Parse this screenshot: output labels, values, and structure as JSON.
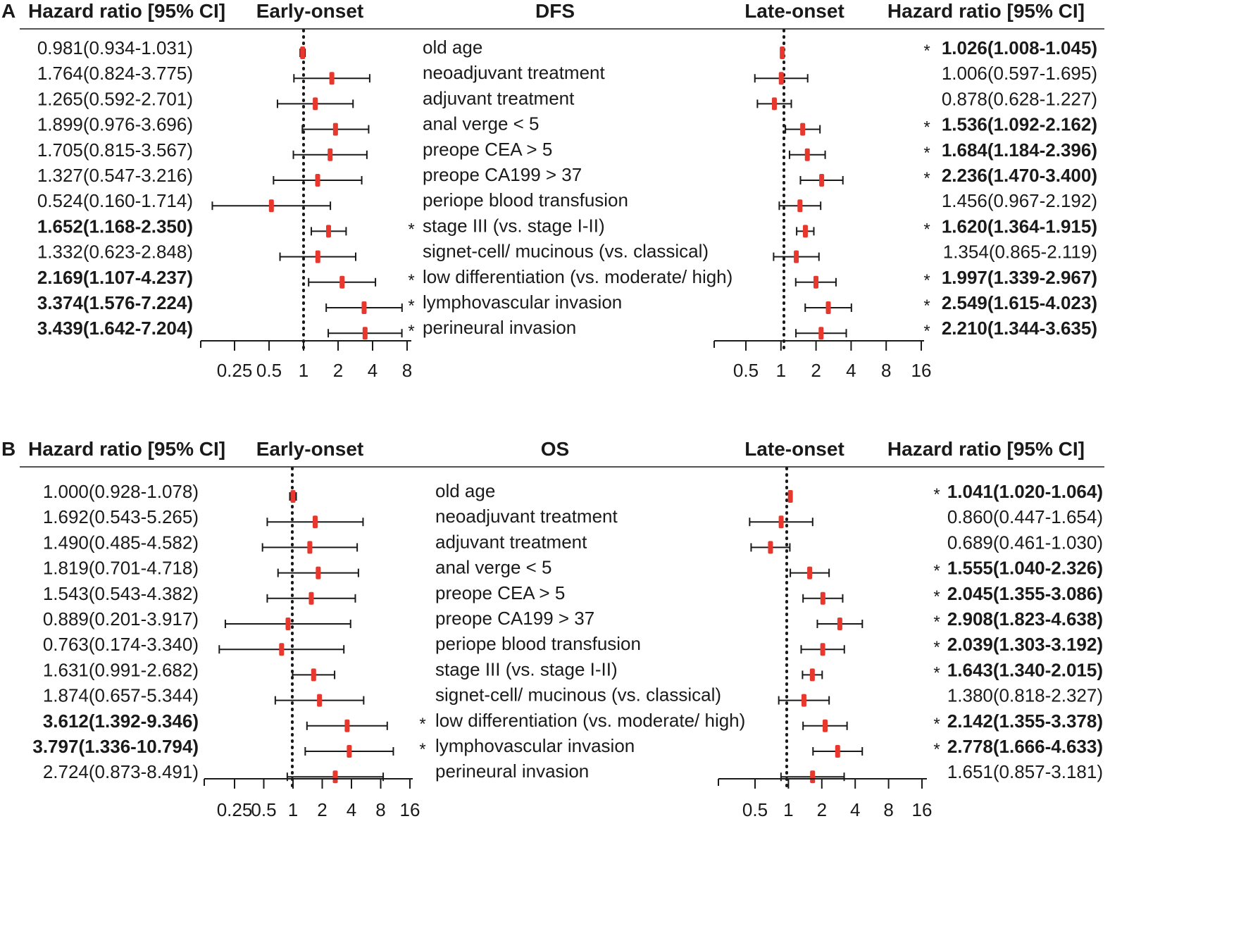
{
  "chart_data": [
    {
      "panel": "A",
      "type": "forest",
      "title": "DFS",
      "header_hr": "Hazard ratio [95% CI]",
      "left_group": "Early-onset",
      "right_group": "Late-onset",
      "scale": "log2",
      "reference_line": 1,
      "left_ticks": [
        "0.25",
        "0.5",
        "1",
        "2",
        "4",
        "8"
      ],
      "left_xlim": [
        0.125,
        8
      ],
      "right_ticks": [
        "0.5",
        "1",
        "2",
        "4",
        "8",
        "16"
      ],
      "right_xlim": [
        0.25,
        16
      ],
      "rows": [
        {
          "variable": "old age",
          "left": {
            "label": "0.981(0.934-1.031)",
            "hr": 0.981,
            "lo": 0.934,
            "hi": 1.031,
            "sig": false
          },
          "right": {
            "label": "1.026(1.008-1.045)",
            "hr": 1.026,
            "lo": 1.008,
            "hi": 1.045,
            "sig": true
          }
        },
        {
          "variable": "neoadjuvant treatment",
          "left": {
            "label": "1.764(0.824-3.775)",
            "hr": 1.764,
            "lo": 0.824,
            "hi": 3.775,
            "sig": false
          },
          "right": {
            "label": "1.006(0.597-1.695)",
            "hr": 1.006,
            "lo": 0.597,
            "hi": 1.695,
            "sig": false
          }
        },
        {
          "variable": "adjuvant treatment",
          "left": {
            "label": "1.265(0.592-2.701)",
            "hr": 1.265,
            "lo": 0.592,
            "hi": 2.701,
            "sig": false
          },
          "right": {
            "label": "0.878(0.628-1.227)",
            "hr": 0.878,
            "lo": 0.628,
            "hi": 1.227,
            "sig": false
          }
        },
        {
          "variable": "anal verge < 5",
          "left": {
            "label": "1.899(0.976-3.696)",
            "hr": 1.899,
            "lo": 0.976,
            "hi": 3.696,
            "sig": false
          },
          "right": {
            "label": "1.536(1.092-2.162)",
            "hr": 1.536,
            "lo": 1.092,
            "hi": 2.162,
            "sig": true
          }
        },
        {
          "variable": "preope CEA > 5",
          "left": {
            "label": "1.705(0.815-3.567)",
            "hr": 1.705,
            "lo": 0.815,
            "hi": 3.567,
            "sig": false
          },
          "right": {
            "label": "1.684(1.184-2.396)",
            "hr": 1.684,
            "lo": 1.184,
            "hi": 2.396,
            "sig": true
          }
        },
        {
          "variable": "preope CA199 > 37",
          "left": {
            "label": "1.327(0.547-3.216)",
            "hr": 1.327,
            "lo": 0.547,
            "hi": 3.216,
            "sig": false
          },
          "right": {
            "label": "2.236(1.470-3.400)",
            "hr": 2.236,
            "lo": 1.47,
            "hi": 3.4,
            "sig": true
          }
        },
        {
          "variable": "periope blood transfusion",
          "left": {
            "label": "0.524(0.160-1.714)",
            "hr": 0.524,
            "lo": 0.16,
            "hi": 1.714,
            "sig": false
          },
          "right": {
            "label": "1.456(0.967-2.192)",
            "hr": 1.456,
            "lo": 0.967,
            "hi": 2.192,
            "sig": false
          }
        },
        {
          "variable": "stage III (vs. stage I-II)",
          "left": {
            "label": "1.652(1.168-2.350)",
            "hr": 1.652,
            "lo": 1.168,
            "hi": 2.35,
            "sig": true
          },
          "right": {
            "label": "1.620(1.364-1.915)",
            "hr": 1.62,
            "lo": 1.364,
            "hi": 1.915,
            "sig": true
          }
        },
        {
          "variable": "signet-cell/ mucinous (vs. classical)",
          "left": {
            "label": "1.332(0.623-2.848)",
            "hr": 1.332,
            "lo": 0.623,
            "hi": 2.848,
            "sig": false
          },
          "right": {
            "label": "1.354(0.865-2.119)",
            "hr": 1.354,
            "lo": 0.865,
            "hi": 2.119,
            "sig": false
          }
        },
        {
          "variable": "low differentiation (vs. moderate/ high)",
          "left": {
            "label": "2.169(1.107-4.237)",
            "hr": 2.169,
            "lo": 1.107,
            "hi": 4.237,
            "sig": true
          },
          "right": {
            "label": "1.997(1.339-2.967)",
            "hr": 1.997,
            "lo": 1.339,
            "hi": 2.967,
            "sig": true
          }
        },
        {
          "variable": "lymphovascular invasion",
          "left": {
            "label": "3.374(1.576-7.224)",
            "hr": 3.374,
            "lo": 1.576,
            "hi": 7.224,
            "sig": true
          },
          "right": {
            "label": "2.549(1.615-4.023)",
            "hr": 2.549,
            "lo": 1.615,
            "hi": 4.023,
            "sig": true
          }
        },
        {
          "variable": "perineural invasion",
          "left": {
            "label": "3.439(1.642-7.204)",
            "hr": 3.439,
            "lo": 1.642,
            "hi": 7.204,
            "sig": true
          },
          "right": {
            "label": "2.210(1.344-3.635)",
            "hr": 2.21,
            "lo": 1.344,
            "hi": 3.635,
            "sig": true
          }
        }
      ]
    },
    {
      "panel": "B",
      "type": "forest",
      "title": "OS",
      "header_hr": "Hazard ratio [95% CI]",
      "left_group": "Early-onset",
      "right_group": "Late-onset",
      "scale": "log2",
      "reference_line": 1,
      "left_ticks": [
        "0.25",
        "0.5",
        "1",
        "2",
        "4",
        "8",
        "16"
      ],
      "left_xlim": [
        0.125,
        16
      ],
      "right_ticks": [
        "0.5",
        "1",
        "2",
        "4",
        "8",
        "16"
      ],
      "right_xlim": [
        0.25,
        16
      ],
      "rows": [
        {
          "variable": "old age",
          "left": {
            "label": "1.000(0.928-1.078)",
            "hr": 1.0,
            "lo": 0.928,
            "hi": 1.078,
            "sig": false
          },
          "right": {
            "label": "1.041(1.020-1.064)",
            "hr": 1.041,
            "lo": 1.02,
            "hi": 1.064,
            "sig": true
          }
        },
        {
          "variable": "neoadjuvant treatment",
          "left": {
            "label": "1.692(0.543-5.265)",
            "hr": 1.692,
            "lo": 0.543,
            "hi": 5.265,
            "sig": false
          },
          "right": {
            "label": "0.860(0.447-1.654)",
            "hr": 0.86,
            "lo": 0.447,
            "hi": 1.654,
            "sig": false
          }
        },
        {
          "variable": "adjuvant treatment",
          "left": {
            "label": "1.490(0.485-4.582)",
            "hr": 1.49,
            "lo": 0.485,
            "hi": 4.582,
            "sig": false
          },
          "right": {
            "label": "0.689(0.461-1.030)",
            "hr": 0.689,
            "lo": 0.461,
            "hi": 1.03,
            "sig": false
          }
        },
        {
          "variable": "anal verge < 5",
          "left": {
            "label": "1.819(0.701-4.718)",
            "hr": 1.819,
            "lo": 0.701,
            "hi": 4.718,
            "sig": false
          },
          "right": {
            "label": "1.555(1.040-2.326)",
            "hr": 1.555,
            "lo": 1.04,
            "hi": 2.326,
            "sig": true
          }
        },
        {
          "variable": "preope CEA > 5",
          "left": {
            "label": "1.543(0.543-4.382)",
            "hr": 1.543,
            "lo": 0.543,
            "hi": 4.382,
            "sig": false
          },
          "right": {
            "label": "2.045(1.355-3.086)",
            "hr": 2.045,
            "lo": 1.355,
            "hi": 3.086,
            "sig": true
          }
        },
        {
          "variable": "preope CA199 > 37",
          "left": {
            "label": "0.889(0.201-3.917)",
            "hr": 0.889,
            "lo": 0.201,
            "hi": 3.917,
            "sig": false
          },
          "right": {
            "label": "2.908(1.823-4.638)",
            "hr": 2.908,
            "lo": 1.823,
            "hi": 4.638,
            "sig": true
          }
        },
        {
          "variable": "periope blood transfusion",
          "left": {
            "label": "0.763(0.174-3.340)",
            "hr": 0.763,
            "lo": 0.174,
            "hi": 3.34,
            "sig": false
          },
          "right": {
            "label": "2.039(1.303-3.192)",
            "hr": 2.039,
            "lo": 1.303,
            "hi": 3.192,
            "sig": true
          }
        },
        {
          "variable": "stage III (vs. stage I-II)",
          "left": {
            "label": "1.631(0.991-2.682)",
            "hr": 1.631,
            "lo": 0.991,
            "hi": 2.682,
            "sig": false
          },
          "right": {
            "label": "1.643(1.340-2.015)",
            "hr": 1.643,
            "lo": 1.34,
            "hi": 2.015,
            "sig": true
          }
        },
        {
          "variable": "signet-cell/ mucinous (vs. classical)",
          "left": {
            "label": "1.874(0.657-5.344)",
            "hr": 1.874,
            "lo": 0.657,
            "hi": 5.344,
            "sig": false
          },
          "right": {
            "label": "1.380(0.818-2.327)",
            "hr": 1.38,
            "lo": 0.818,
            "hi": 2.327,
            "sig": false
          }
        },
        {
          "variable": "low differentiation (vs. moderate/ high)",
          "left": {
            "label": "3.612(1.392-9.346)",
            "hr": 3.612,
            "lo": 1.392,
            "hi": 9.346,
            "sig": true
          },
          "right": {
            "label": "2.142(1.355-3.378)",
            "hr": 2.142,
            "lo": 1.355,
            "hi": 3.378,
            "sig": true
          }
        },
        {
          "variable": "lymphovascular invasion",
          "left": {
            "label": "3.797(1.336-10.794)",
            "hr": 3.797,
            "lo": 1.336,
            "hi": 10.794,
            "sig": true
          },
          "right": {
            "label": "2.778(1.666-4.633)",
            "hr": 2.778,
            "lo": 1.666,
            "hi": 4.633,
            "sig": true
          }
        },
        {
          "variable": "perineural invasion",
          "left": {
            "label": "2.724(0.873-8.491)",
            "hr": 2.724,
            "lo": 0.873,
            "hi": 8.491,
            "sig": false
          },
          "right": {
            "label": "1.651(0.857-3.181)",
            "hr": 1.651,
            "lo": 0.857,
            "hi": 3.181,
            "sig": false
          }
        }
      ]
    }
  ],
  "colors": {
    "marker": "#e8372c",
    "line": "#1a1a1a",
    "text": "#1a1a1a",
    "background": "#ffffff"
  },
  "significance_marker": "*"
}
